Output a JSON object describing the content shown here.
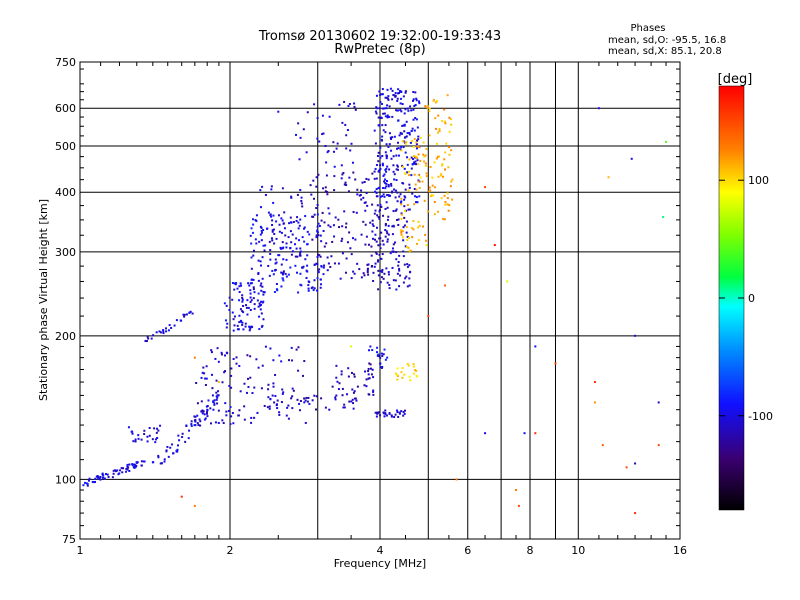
{
  "chart_data": [
    {
      "type": "scatter",
      "title": "Tromsø 20130602 19:32:00-19:33:43",
      "subtitle": "RwPretec (8p)",
      "xlabel": "Frequency [MHz]",
      "ylabel": "Stationary phase Virtual Height [km]",
      "xscale": "log",
      "yscale": "log",
      "xlim": [
        1,
        16
      ],
      "ylim": [
        75,
        750
      ],
      "grid": true,
      "xticks": [
        1,
        2,
        4,
        6,
        8,
        10,
        16
      ],
      "xtick_labels": [
        "1",
        "2",
        "4",
        "6",
        "8",
        "10",
        "16"
      ],
      "xminor": [
        3,
        5,
        7,
        9
      ],
      "yticks": [
        75,
        100,
        200,
        300,
        400,
        500,
        600,
        750
      ],
      "ytick_labels": [
        "75",
        "100",
        "200",
        "300",
        "400",
        "500",
        "600",
        "750"
      ],
      "ygrid": [
        100,
        200,
        300,
        400,
        500,
        600
      ],
      "color_label": "[deg]",
      "color_range": [
        -180,
        180
      ],
      "color_ticks": [
        100,
        0,
        -100
      ],
      "color_tick_labels": [
        "100",
        "0",
        "-100"
      ],
      "annotation": {
        "title": "Phases",
        "line1": "mean, sd,O: -95.5, 16.8",
        "line2": "mean, sd,X:  85.1, 20.8"
      },
      "clusters": [
        {
          "f": [
            1.0,
            1.45
          ],
          "h": [
            97,
            112
          ],
          "trend": "diag",
          "phase": -100,
          "n": 70
        },
        {
          "f": [
            1.45,
            1.9
          ],
          "h": [
            108,
            150
          ],
          "trend": "diag",
          "phase": -100,
          "n": 60
        },
        {
          "f": [
            1.25,
            1.45
          ],
          "h": [
            118,
            130
          ],
          "phase": -105,
          "n": 25
        },
        {
          "f": [
            1.35,
            1.7
          ],
          "h": [
            195,
            225
          ],
          "trend": "diag",
          "phase": -105,
          "n": 30
        },
        {
          "f": [
            1.7,
            2.05
          ],
          "h": [
            130,
            190
          ],
          "phase": -105,
          "n": 60
        },
        {
          "f": [
            1.95,
            2.35
          ],
          "h": [
            205,
            260
          ],
          "phase": -100,
          "n": 90
        },
        {
          "f": [
            2.2,
            3.1
          ],
          "h": [
            245,
            360
          ],
          "phase": -95,
          "n": 160
        },
        {
          "f": [
            2.3,
            2.8
          ],
          "h": [
            270,
            420
          ],
          "phase": -105,
          "n": 60
        },
        {
          "f": [
            2.0,
            2.9
          ],
          "h": [
            130,
            190
          ],
          "phase": -110,
          "n": 70
        },
        {
          "f": [
            2.4,
            3.6
          ],
          "h": [
            140,
            150
          ],
          "phase": -110,
          "n": 40
        },
        {
          "f": [
            2.9,
            3.9
          ],
          "h": [
            260,
            440
          ],
          "phase": -115,
          "n": 130
        },
        {
          "f": [
            2.7,
            3.6
          ],
          "h": [
            450,
            620
          ],
          "phase": -105,
          "n": 40
        },
        {
          "f": [
            3.2,
            3.9
          ],
          "h": [
            150,
            175
          ],
          "phase": -115,
          "n": 40
        },
        {
          "f": [
            3.9,
            4.8
          ],
          "h": [
            380,
            660
          ],
          "phase": -100,
          "n": 260
        },
        {
          "f": [
            3.9,
            4.6
          ],
          "h": [
            250,
            380
          ],
          "phase": -110,
          "n": 120
        },
        {
          "f": [
            4.4,
            5.0
          ],
          "h": [
            300,
            520
          ],
          "phase": 110,
          "n": 70
        },
        {
          "f": [
            4.9,
            5.6
          ],
          "h": [
            350,
            640
          ],
          "phase": 115,
          "n": 80
        },
        {
          "f": [
            3.9,
            4.5
          ],
          "h": [
            135,
            140
          ],
          "phase": -105,
          "n": 30
        },
        {
          "f": [
            4.3,
            4.8
          ],
          "h": [
            160,
            175
          ],
          "phase": 100,
          "n": 20
        },
        {
          "f": [
            3.8,
            4.2
          ],
          "h": [
            170,
            190
          ],
          "phase": -95,
          "n": 20
        }
      ],
      "scattered": [
        {
          "f": 6.5,
          "h": 125,
          "phase": -100
        },
        {
          "f": 7.8,
          "h": 125,
          "phase": -95
        },
        {
          "f": 8.2,
          "h": 190,
          "phase": -95
        },
        {
          "f": 9.0,
          "h": 175,
          "phase": 150
        },
        {
          "f": 11.0,
          "h": 600,
          "phase": -100
        },
        {
          "f": 11.5,
          "h": 430,
          "phase": 110
        },
        {
          "f": 12.8,
          "h": 470,
          "phase": -100
        },
        {
          "f": 13.0,
          "h": 200,
          "phase": -110
        },
        {
          "f": 13.0,
          "h": 108,
          "phase": -120
        },
        {
          "f": 13.0,
          "h": 85,
          "phase": 160
        },
        {
          "f": 14.5,
          "h": 145,
          "phase": -110
        },
        {
          "f": 14.5,
          "h": 118,
          "phase": 150
        },
        {
          "f": 14.8,
          "h": 355,
          "phase": 10
        },
        {
          "f": 15.0,
          "h": 510,
          "phase": 40
        },
        {
          "f": 7.2,
          "h": 260,
          "phase": 80
        },
        {
          "f": 6.5,
          "h": 410,
          "phase": 150
        },
        {
          "f": 6.8,
          "h": 310,
          "phase": 170
        },
        {
          "f": 7.5,
          "h": 95,
          "phase": 130
        },
        {
          "f": 7.6,
          "h": 88,
          "phase": 150
        },
        {
          "f": 5.7,
          "h": 100,
          "phase": 130
        },
        {
          "f": 1.6,
          "h": 92,
          "phase": 160
        },
        {
          "f": 1.7,
          "h": 88,
          "phase": 130
        },
        {
          "f": 1.7,
          "h": 180,
          "phase": 130
        },
        {
          "f": 1.9,
          "h": 160,
          "phase": 110
        },
        {
          "f": 2.5,
          "h": 590,
          "phase": -100
        },
        {
          "f": 10.8,
          "h": 145,
          "phase": 120
        },
        {
          "f": 11.2,
          "h": 118,
          "phase": 140
        },
        {
          "f": 12.5,
          "h": 106,
          "phase": 150
        },
        {
          "f": 3.5,
          "h": 190,
          "phase": 80
        },
        {
          "f": 5.0,
          "h": 220,
          "phase": 150
        },
        {
          "f": 5.4,
          "h": 255,
          "phase": 140
        },
        {
          "f": 8.2,
          "h": 125,
          "phase": 160
        },
        {
          "f": 10.8,
          "h": 160,
          "phase": 160
        }
      ]
    }
  ]
}
